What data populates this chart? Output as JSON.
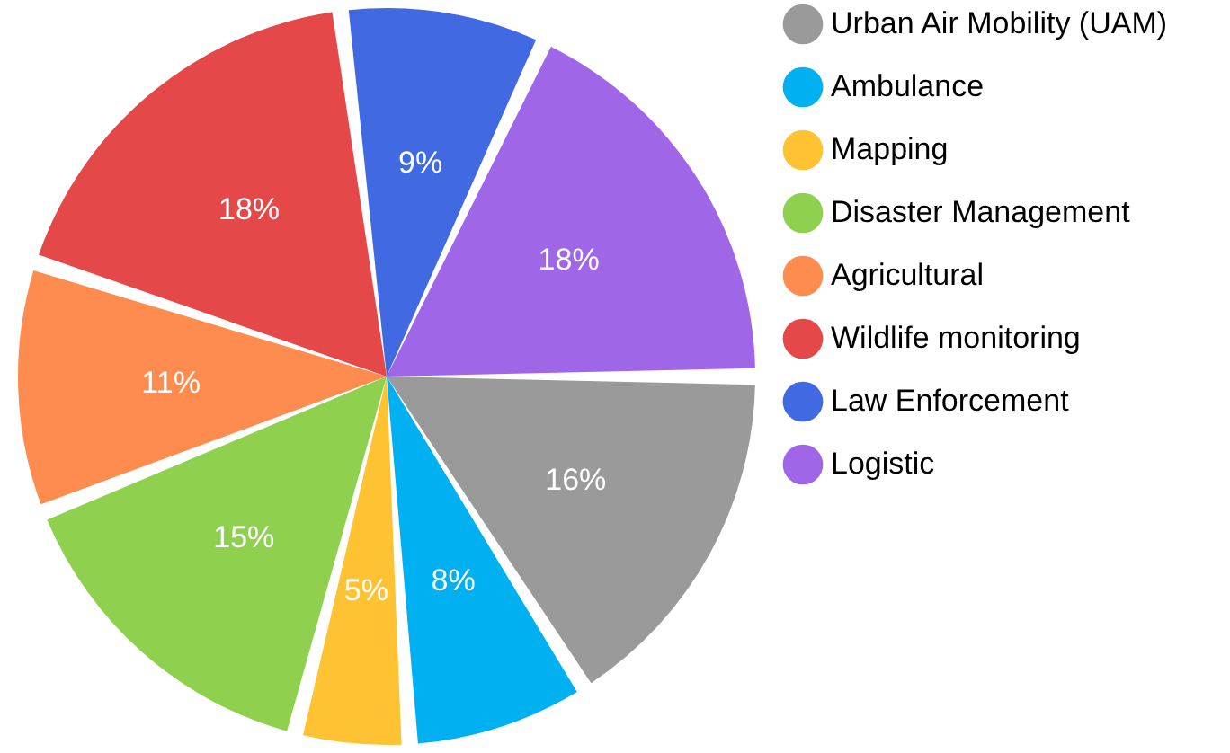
{
  "chart_data": {
    "type": "pie",
    "categories": [
      "Urban Air Mobility (UAM)",
      "Ambulance",
      "Mapping",
      "Disaster Management",
      "Agricultural",
      "Wildlife monitoring",
      "Law Enforcement",
      "Logistic"
    ],
    "values": [
      16,
      8,
      5,
      15,
      11,
      18,
      9,
      18
    ],
    "value_labels": [
      "16%",
      "8%",
      "5%",
      "15%",
      "11%",
      "18%",
      "9%",
      "18%"
    ],
    "colors": [
      "#9a9a9a",
      "#00b0f0",
      "#ffc233",
      "#8fd14f",
      "#ff8c4f",
      "#e54848",
      "#4169e1",
      "#a066e8"
    ],
    "legend": "right"
  }
}
